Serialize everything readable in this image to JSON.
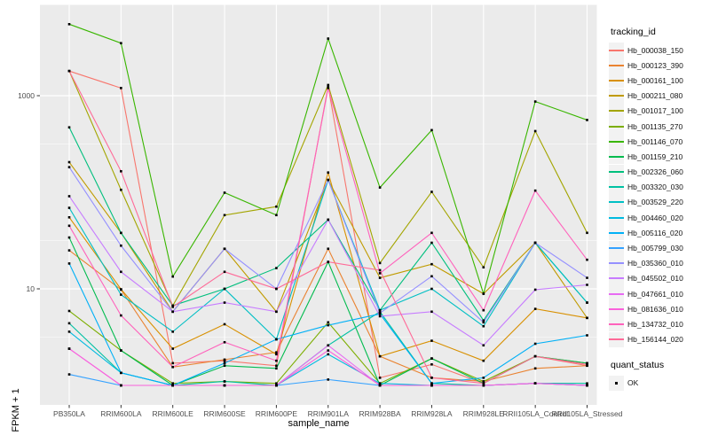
{
  "chart_data": {
    "type": "line",
    "title": "",
    "xlabel": "sample_name",
    "ylabel": "FPKM + 1",
    "y_scale": "log10",
    "ylim": [
      1,
      7000
    ],
    "y_ticks": [
      {
        "value": 10,
        "label": "10"
      },
      {
        "value": 1000,
        "label": "1000"
      }
    ],
    "y_minor_gridlines": [
      3.162,
      31.62,
      316.2
    ],
    "y_major_gridlines": [
      10,
      1000
    ],
    "grid": true,
    "panel_color": "#EBEBEB",
    "gridline_color": "#FFFFFF",
    "point_marker": "black-square",
    "legend_position": "right",
    "legend_tracking_title": "tracking_id",
    "legend_quant_title": "quant_status",
    "quant_items": [
      {
        "label": "OK",
        "marker": "black-square"
      }
    ],
    "categories": [
      "PB350LA",
      "RRIM600LA",
      "RRIM600LE",
      "RRIM600SE",
      "RRIM600PE",
      "RRIM901LA",
      "RRIM928BA",
      "RRIM928LA",
      "RRIM928LE",
      "RRII105LA_Control",
      "RRII105LA_Stressed"
    ],
    "series": [
      {
        "name": "Hb_000038_150",
        "color": "#F8766D",
        "values": [
          1800,
          1200,
          1.7,
          1.8,
          1.6,
          1250,
          1.2,
          1.65,
          1.05,
          2.0,
          1.6
        ]
      },
      {
        "name": "Hb_000123_390",
        "color": "#EA8331",
        "values": [
          25,
          9.8,
          1.55,
          1.85,
          2.2,
          26,
          2.0,
          1.2,
          1.1,
          1.5,
          1.6
        ]
      },
      {
        "name": "Hb_000161_100",
        "color": "#D89000",
        "values": [
          55,
          9.9,
          2.4,
          4.3,
          2.1,
          160,
          2.0,
          2.9,
          1.8,
          6.2,
          5.0
        ]
      },
      {
        "name": "Hb_000211_080",
        "color": "#C09B00",
        "values": [
          205,
          38,
          5.8,
          26,
          5.8,
          134,
          13,
          18,
          8.9,
          30,
          5.0
        ]
      },
      {
        "name": "Hb_001017_100",
        "color": "#A3A500",
        "values": [
          1800,
          106,
          6.7,
          58,
          71,
          1290,
          18.5,
          101,
          16.7,
          430,
          38
        ]
      },
      {
        "name": "Hb_001135_270",
        "color": "#7CAE00",
        "values": [
          5.9,
          2.3,
          1.05,
          1.1,
          1.05,
          4.5,
          1.05,
          1.9,
          1.1,
          2.0,
          1.7
        ]
      },
      {
        "name": "Hb_001146_070",
        "color": "#39B600",
        "values": [
          5500,
          3500,
          13.4,
          99,
          58,
          3900,
          112,
          440,
          8.9,
          870,
          560
        ]
      },
      {
        "name": "Hb_001159_210",
        "color": "#00BB4E",
        "values": [
          34,
          2.3,
          1.0,
          1.6,
          1.5,
          19,
          1.0,
          1.9,
          1.05,
          2.0,
          1.7
        ]
      },
      {
        "name": "Hb_002326_060",
        "color": "#00BF7D",
        "values": [
          470,
          38,
          6.7,
          10,
          16.4,
          52,
          6.0,
          30,
          4.7,
          30,
          7.2
        ]
      },
      {
        "name": "Hb_003320_030",
        "color": "#00C1A3",
        "values": [
          4.4,
          1.35,
          1.0,
          1.1,
          1.0,
          2.6,
          5.8,
          1.05,
          1.0,
          1.05,
          1.05
        ]
      },
      {
        "name": "Hb_003529_220",
        "color": "#00BFC4",
        "values": [
          69,
          8.7,
          3.6,
          10,
          3.0,
          134,
          6.0,
          10,
          4.1,
          30,
          7.2
        ]
      },
      {
        "name": "Hb_004460_020",
        "color": "#00BAE0",
        "values": [
          3.6,
          1.35,
          1.0,
          1.0,
          1.0,
          2.1,
          1.05,
          1.0,
          1.0,
          1.05,
          1.0
        ]
      },
      {
        "name": "Hb_005116_020",
        "color": "#00B0F6",
        "values": [
          18.3,
          1.35,
          1.0,
          1.7,
          3.0,
          4.2,
          5.5,
          1.05,
          1.2,
          2.7,
          3.3
        ]
      },
      {
        "name": "Hb_005799_030",
        "color": "#35A2FF",
        "values": [
          1.3,
          1.0,
          1.0,
          1.0,
          1.0,
          1.15,
          1.0,
          1.0,
          1.0,
          1.05,
          1.0
        ]
      },
      {
        "name": "Hb_035360_010",
        "color": "#9590FF",
        "values": [
          182,
          28,
          5.8,
          26,
          10,
          134,
          5.6,
          13.5,
          4.5,
          30,
          13
        ]
      },
      {
        "name": "Hb_045502_010",
        "color": "#C77CFF",
        "values": [
          91,
          15,
          5.8,
          7.2,
          5.8,
          52,
          5.2,
          5.8,
          2.6,
          9.8,
          11
        ]
      },
      {
        "name": "Hb_047661_010",
        "color": "#E76BF3",
        "values": [
          2.4,
          1.0,
          1.0,
          1.0,
          1.0,
          2.6,
          1.0,
          1.0,
          1.0,
          1.05,
          1.0
        ]
      },
      {
        "name": "Hb_081636_010",
        "color": "#FA62DB",
        "values": [
          2.4,
          1.0,
          1.0,
          1.0,
          1.0,
          2.3,
          1.0,
          1.0,
          1.0,
          1.05,
          1.0
        ]
      },
      {
        "name": "Hb_134732_010",
        "color": "#FF62BC",
        "values": [
          45,
          5.3,
          1.55,
          2.8,
          1.8,
          1200,
          14.5,
          38,
          6.0,
          104,
          20
        ]
      },
      {
        "name": "Hb_156144_020",
        "color": "#FF6A98",
        "values": [
          1800,
          165,
          6.5,
          15,
          10,
          19,
          15.6,
          1.2,
          1.05,
          2.0,
          1.65
        ]
      }
    ]
  }
}
